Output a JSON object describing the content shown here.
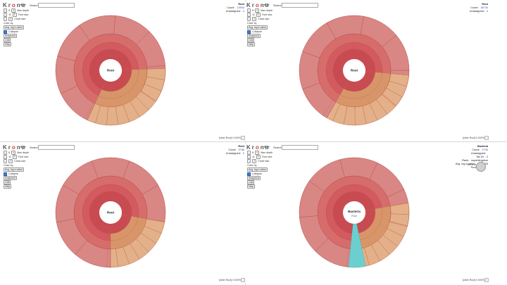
{
  "app": {
    "logo": "Krona"
  },
  "common": {
    "search_label": "Search",
    "max_depth": "Max depth",
    "font_size": "Font size",
    "chart_size": "Chart size",
    "color_by": "Color by",
    "color_by_value": "Avg. log e-value",
    "collapse": "Collapse",
    "snapshot": "Snapshot",
    "link": "Link",
    "help": "Help",
    "count_label": "Count:",
    "unassigned_label": "Unassigned:",
    "depth_value": "8",
    "font_value": "11",
    "chart_value": "",
    "other_label": "[other Root]  0.000%"
  },
  "colors": {
    "inner": "#c94b52",
    "mid1": "#d35a5f",
    "mid2": "#d66d6b",
    "outer": "#d98784",
    "orange": "#d9956a",
    "orange_light": "#e4b08a",
    "teal": "#6ccfcf",
    "center": "#ffffff"
  },
  "panels": [
    {
      "title": "Root",
      "count": "13934",
      "unassigned": "1",
      "center": "Root"
    },
    {
      "title": "Root",
      "count": "35734",
      "unassigned": "1",
      "center": "Root"
    },
    {
      "title": "Root",
      "count": "9788",
      "unassigned": "1",
      "center": "Root"
    },
    {
      "title": "Bacteria",
      "count": "2705",
      "unassigned": "",
      "center": "Bacteria",
      "center_sub": "Root",
      "extra": {
        "tax_id_label": "Tax ID:",
        "tax_id": "2",
        "rank_label": "Rank:",
        "rank": "superkingdom",
        "evalue_label": "Avg. log e-value:",
        "evalue": "-1.98025",
        "pct_label": "100% of",
        "pct_sub": "Root"
      }
    }
  ],
  "icons": {
    "back": "back-arrow-icon",
    "forward": "forward-arrow-icon",
    "zoom": "zoom-box-icon"
  }
}
